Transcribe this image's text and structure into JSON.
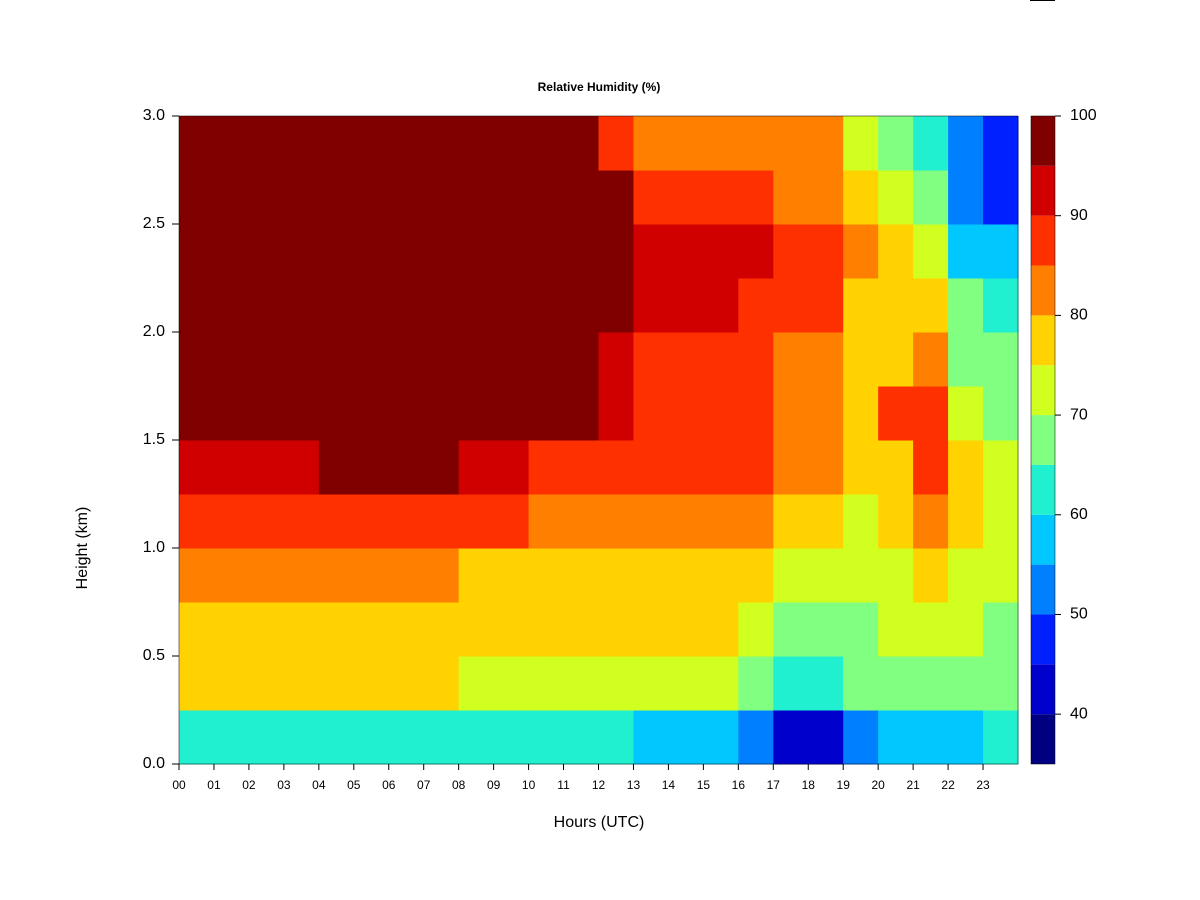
{
  "chart_data": {
    "type": "heatmap",
    "title": "Relative Humidity (%)",
    "x_label": "Hours (UTC)",
    "y_label": "Height (km)",
    "x": [
      0,
      1,
      2,
      3,
      4,
      5,
      6,
      7,
      8,
      9,
      10,
      11,
      12,
      13,
      14,
      15,
      16,
      17,
      18,
      19,
      20,
      21,
      22,
      23
    ],
    "y": [
      0,
      0.25,
      0.5,
      0.75,
      1,
      1.25,
      1.5,
      1.75,
      2,
      2.25,
      2.5,
      2.75
    ],
    "z": [
      [
        65,
        65,
        65,
        65,
        64,
        64,
        64,
        64,
        63,
        63,
        64,
        64,
        62,
        58,
        58,
        58,
        55,
        45,
        45,
        52,
        56,
        58,
        60,
        62
      ],
      [
        76,
        76,
        76,
        76,
        76,
        76,
        76,
        76,
        74,
        74,
        75,
        75,
        74,
        72,
        72,
        72,
        70,
        64,
        64,
        66,
        68,
        70,
        68,
        66
      ],
      [
        80,
        80,
        80,
        80,
        80,
        80,
        80,
        80,
        78,
        78,
        79,
        79,
        78,
        76,
        76,
        76,
        74,
        70,
        70,
        70,
        72,
        74,
        72,
        70
      ],
      [
        82,
        82,
        82,
        82,
        82,
        82,
        82,
        82,
        80,
        80,
        80,
        80,
        80,
        78,
        78,
        78,
        76,
        72,
        72,
        72,
        74,
        76,
        74,
        72
      ],
      [
        90,
        90,
        90,
        90,
        88,
        88,
        88,
        88,
        86,
        86,
        85,
        85,
        84,
        82,
        82,
        82,
        82,
        76,
        76,
        74,
        76,
        84,
        76,
        74
      ],
      [
        94,
        94,
        94,
        94,
        98,
        98,
        98,
        98,
        92,
        92,
        90,
        90,
        88,
        86,
        86,
        86,
        88,
        82,
        82,
        78,
        80,
        90,
        78,
        74
      ],
      [
        98,
        98,
        98,
        98,
        98,
        98,
        98,
        98,
        98,
        98,
        96,
        96,
        92,
        88,
        88,
        88,
        90,
        84,
        84,
        80,
        86,
        88,
        74,
        70
      ],
      [
        98,
        98,
        98,
        98,
        98,
        98,
        98,
        98,
        98,
        98,
        98,
        98,
        95,
        90,
        90,
        90,
        88,
        84,
        84,
        78,
        80,
        82,
        70,
        66
      ],
      [
        98,
        98,
        98,
        98,
        98,
        98,
        98,
        98,
        98,
        98,
        98,
        98,
        97,
        92,
        92,
        92,
        90,
        86,
        86,
        80,
        78,
        78,
        66,
        62
      ],
      [
        98,
        98,
        98,
        98,
        98,
        98,
        98,
        98,
        98,
        98,
        98,
        98,
        98,
        94,
        94,
        94,
        93,
        88,
        88,
        82,
        78,
        74,
        58,
        56
      ],
      [
        98,
        98,
        98,
        98,
        98,
        98,
        98,
        98,
        98,
        98,
        98,
        98,
        96,
        88,
        88,
        88,
        88,
        84,
        84,
        78,
        72,
        68,
        54,
        50
      ],
      [
        98,
        98,
        98,
        98,
        98,
        98,
        98,
        98,
        98,
        98,
        98,
        98,
        90,
        84,
        84,
        84,
        84,
        82,
        82,
        74,
        66,
        62,
        52,
        46
      ]
    ],
    "xlim": [
      0,
      24
    ],
    "xticks": [
      {
        "value": 0,
        "label": "00"
      },
      {
        "value": 1,
        "label": "01"
      },
      {
        "value": 2,
        "label": "02"
      },
      {
        "value": 3,
        "label": "03"
      },
      {
        "value": 4,
        "label": "04"
      },
      {
        "value": 5,
        "label": "05"
      },
      {
        "value": 6,
        "label": "06"
      },
      {
        "value": 7,
        "label": "07"
      },
      {
        "value": 8,
        "label": "08"
      },
      {
        "value": 9,
        "label": "09"
      },
      10,
      11,
      12,
      13,
      14,
      15,
      16,
      17,
      18,
      19,
      20,
      21,
      22,
      23
    ],
    "ylim": [
      0,
      3
    ],
    "yticks": [
      {
        "value": 0,
        "label": "0.0"
      },
      0.5,
      {
        "value": 1,
        "label": "1.0"
      },
      1.5,
      {
        "value": 2,
        "label": "2.0"
      },
      2.5,
      {
        "value": 3,
        "label": "3.0"
      }
    ],
    "levels": [
      35,
      40,
      45,
      50,
      55,
      60,
      65,
      70,
      75,
      80,
      85,
      90,
      95,
      100
    ],
    "colors": [
      "#000080",
      "#0000cd",
      "#0020ff",
      "#0080ff",
      "#00c8ff",
      "#20f0d0",
      "#80ff80",
      "#d0ff20",
      "#ffd200",
      "#ff8000",
      "#ff3000",
      "#d00000",
      "#800000"
    ],
    "colorbar_ticks": [
      40,
      50,
      60,
      70,
      80,
      90,
      100
    ]
  }
}
